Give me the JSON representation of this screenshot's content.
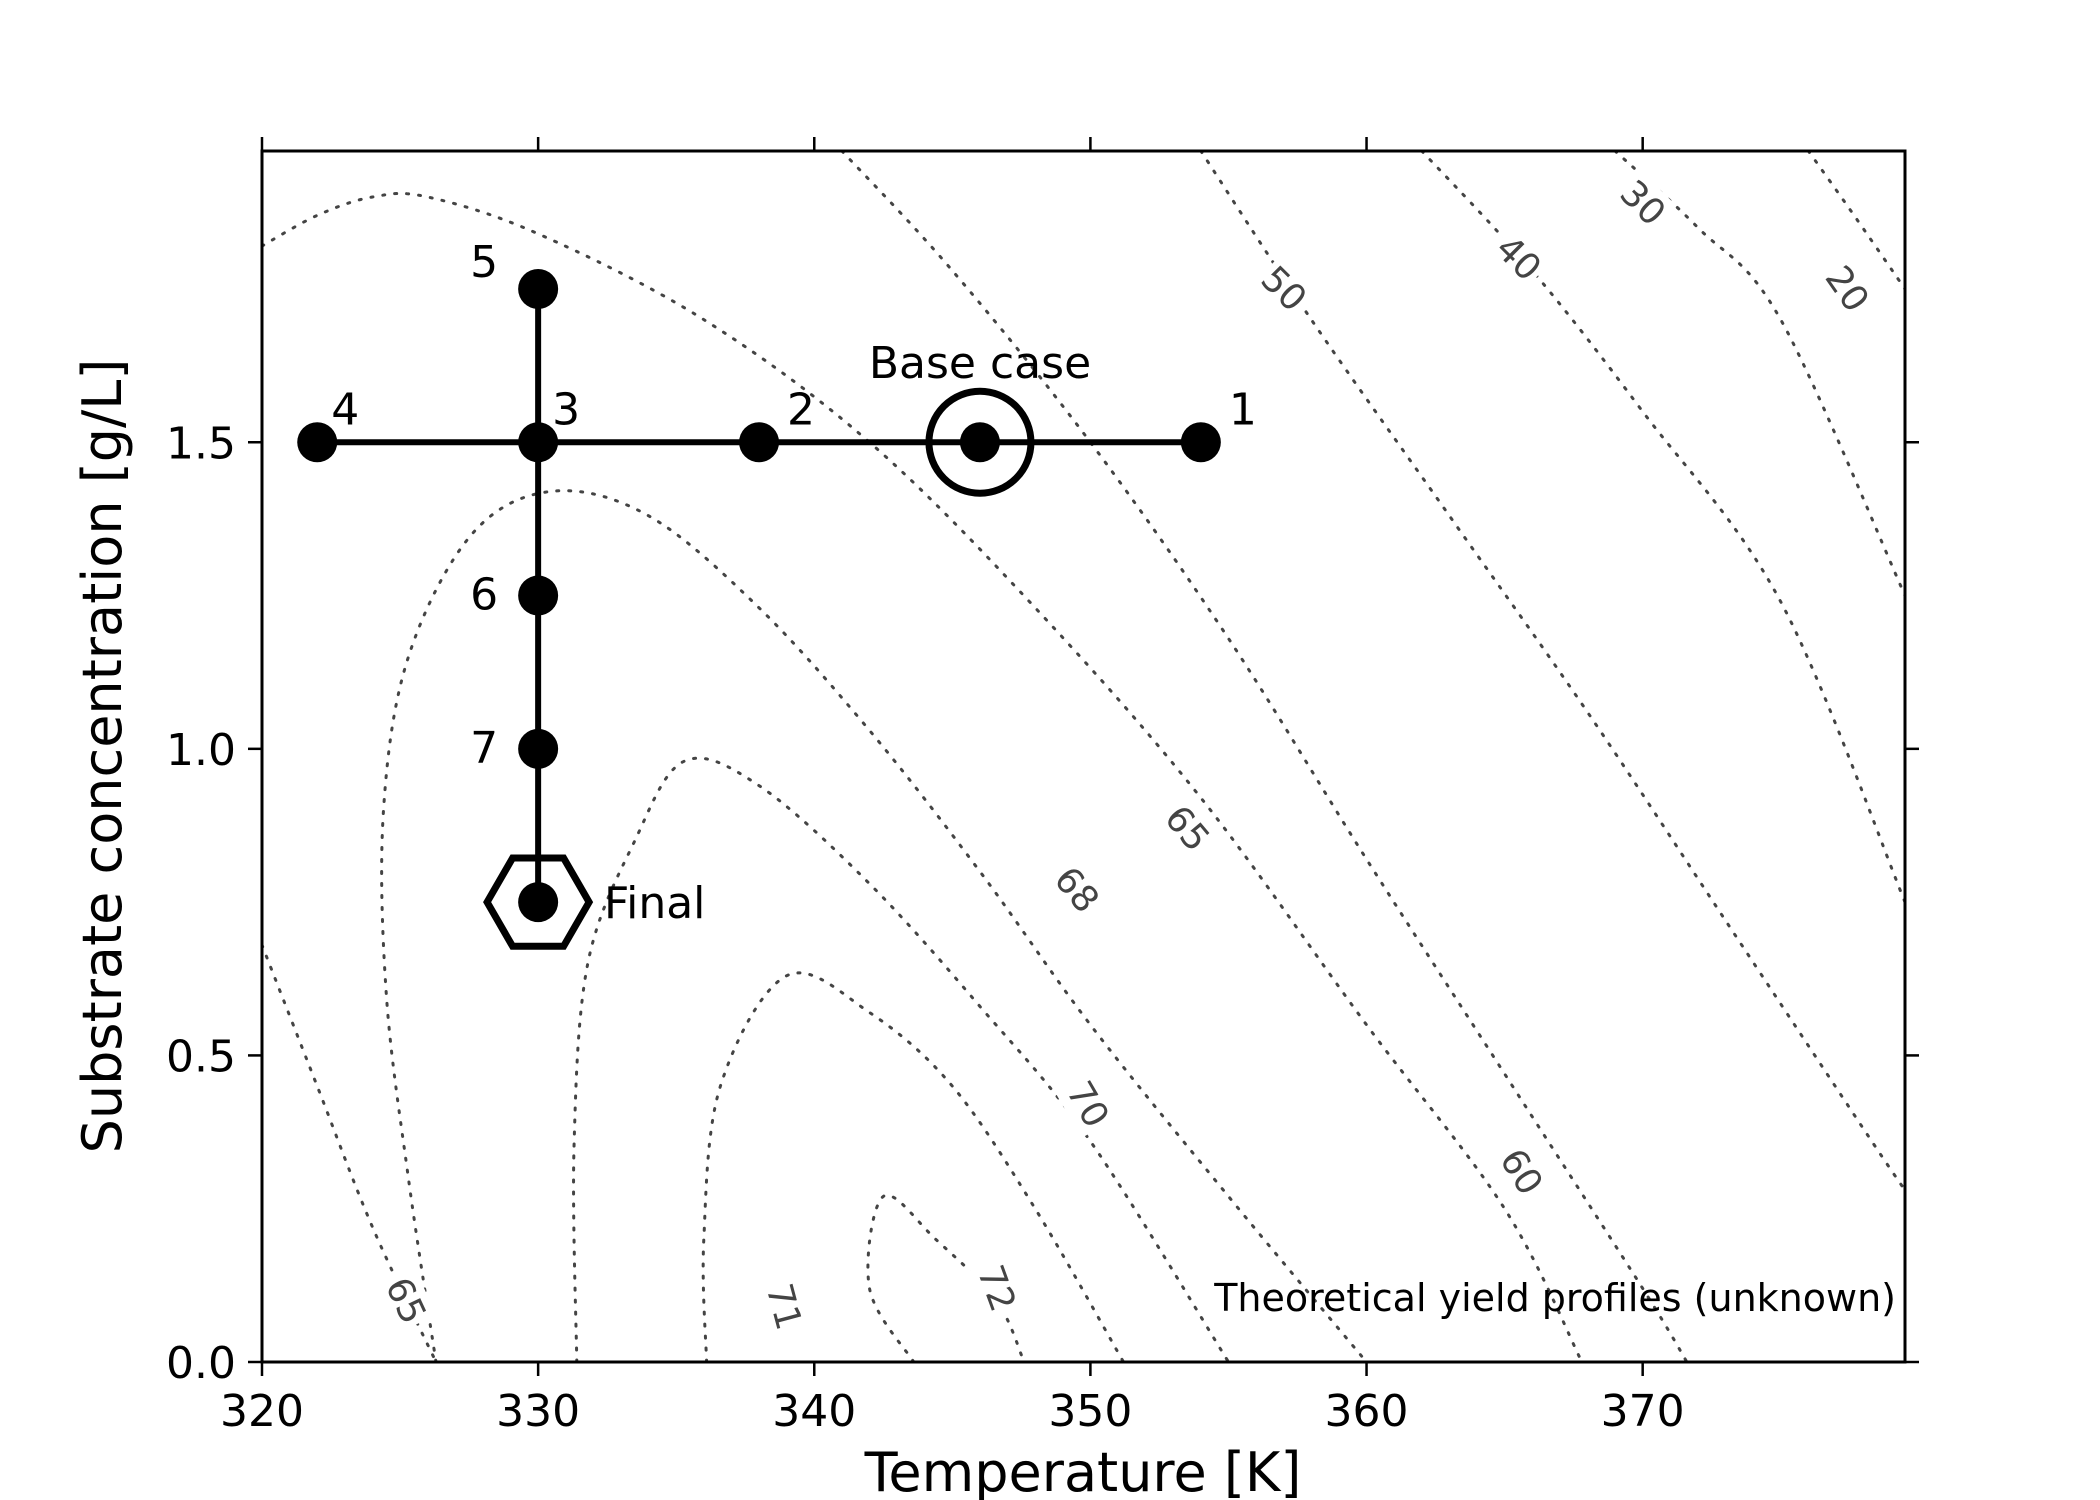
{
  "chart_data": {
    "type": "scatter",
    "title": "",
    "xlabel": "Temperature [K]",
    "ylabel": "Substrate concentration [g/L]",
    "xlim": [
      320,
      379.5
    ],
    "ylim": [
      0,
      1.975
    ],
    "xticks": [
      "320",
      "330",
      "340",
      "350",
      "360",
      "370"
    ],
    "yticks": [
      "0.0",
      "0.5",
      "1.0",
      "1.5"
    ],
    "grid": false,
    "annotation": "Theoretical yield profiles (unknown)",
    "base_case_label": "Base case",
    "final_label": "Final",
    "points": [
      {
        "label": "1",
        "x": 354,
        "y": 1.5
      },
      {
        "label": "2",
        "x": 338,
        "y": 1.5
      },
      {
        "label": "3",
        "x": 330,
        "y": 1.5
      },
      {
        "label": "4",
        "x": 322,
        "y": 1.5
      },
      {
        "label": "5",
        "x": 330,
        "y": 1.75
      },
      {
        "label": "6",
        "x": 330,
        "y": 1.25
      },
      {
        "label": "7",
        "x": 330,
        "y": 1.0
      },
      {
        "label": "",
        "x": 346,
        "y": 1.5
      },
      {
        "label": "",
        "x": 330,
        "y": 0.75
      }
    ],
    "path_segments": [
      {
        "x": [
          322,
          354
        ],
        "y": [
          1.5,
          1.5
        ]
      },
      {
        "x": [
          330,
          330
        ],
        "y": [
          0.75,
          1.75
        ]
      }
    ],
    "base_case_point": {
      "x": 346,
      "y": 1.5
    },
    "final_point": {
      "x": 330,
      "y": 0.75
    },
    "contours": [
      {
        "level": "72",
        "points": [
          [
            343.6,
            0
          ],
          [
            342,
            0.12
          ],
          [
            342.5,
            0.27
          ],
          [
            344.4,
            0.2
          ],
          [
            346.6,
            0.1
          ],
          [
            347.6,
            0
          ]
        ]
      },
      {
        "level": "71",
        "points": [
          [
            336.1,
            0
          ],
          [
            336,
            0.2
          ],
          [
            336.6,
            0.45
          ],
          [
            339,
            0.63
          ],
          [
            342,
            0.57
          ],
          [
            345,
            0.45
          ],
          [
            348,
            0.25
          ],
          [
            351.2,
            0
          ]
        ]
      },
      {
        "level": "70",
        "points": [
          [
            331.4,
            0
          ],
          [
            331.3,
            0.35
          ],
          [
            331.8,
            0.65
          ],
          [
            333.5,
            0.85
          ],
          [
            335.3,
            0.98
          ],
          [
            338,
            0.94
          ],
          [
            342,
            0.78
          ],
          [
            346,
            0.58
          ],
          [
            350,
            0.36
          ],
          [
            355,
            0
          ]
        ]
      },
      {
        "level": "68",
        "points": [
          [
            326.3,
            0
          ],
          [
            325.3,
            0.3
          ],
          [
            324.5,
            0.6
          ],
          [
            324.4,
            0.9
          ],
          [
            325.3,
            1.15
          ],
          [
            327.6,
            1.35
          ],
          [
            330.5,
            1.42
          ],
          [
            334,
            1.38
          ],
          [
            338,
            1.23
          ],
          [
            342,
            1.03
          ],
          [
            346,
            0.8
          ],
          [
            350,
            0.55
          ],
          [
            355,
            0.27
          ],
          [
            360,
            0
          ]
        ]
      },
      {
        "level": "65",
        "points": [
          [
            320,
            0.68
          ],
          [
            322,
            0.45
          ],
          [
            324,
            0.22
          ],
          [
            326.3,
            0
          ]
        ]
      },
      {
        "level": "65b",
        "points": [
          [
            320,
            1.82
          ],
          [
            322,
            1.87
          ],
          [
            324,
            1.9
          ],
          [
            326,
            1.9
          ],
          [
            330,
            1.84
          ],
          [
            336,
            1.7
          ],
          [
            342,
            1.5
          ],
          [
            348,
            1.23
          ],
          [
            354,
            0.92
          ],
          [
            360,
            0.55
          ],
          [
            365,
            0.25
          ],
          [
            367.8,
            0
          ]
        ]
      },
      {
        "level": "60",
        "points": [
          [
            341,
            1.975
          ],
          [
            345,
            1.78
          ],
          [
            350,
            1.5
          ],
          [
            355,
            1.18
          ],
          [
            360,
            0.82
          ],
          [
            365,
            0.47
          ],
          [
            370,
            0.12
          ],
          [
            371.6,
            0
          ]
        ]
      },
      {
        "level": "50",
        "points": [
          [
            354,
            1.975
          ],
          [
            358,
            1.7
          ],
          [
            363,
            1.38
          ],
          [
            368,
            1.06
          ],
          [
            373,
            0.72
          ],
          [
            378,
            0.38
          ],
          [
            379.5,
            0.28
          ]
        ]
      },
      {
        "level": "40",
        "points": [
          [
            362,
            1.975
          ],
          [
            366,
            1.78
          ],
          [
            370,
            1.55
          ],
          [
            375,
            1.24
          ],
          [
            379.5,
            0.75
          ]
        ]
      },
      {
        "level": "30",
        "points": [
          [
            369,
            1.975
          ],
          [
            372,
            1.85
          ],
          [
            375,
            1.7
          ],
          [
            379.5,
            1.25
          ]
        ]
      },
      {
        "level": "20",
        "points": [
          [
            376,
            1.975
          ],
          [
            377.5,
            1.88
          ],
          [
            379.5,
            1.75
          ]
        ]
      }
    ],
    "contour_labels": [
      {
        "text": "72",
        "x": 346.6,
        "y": 0.12,
        "rotation": 70
      },
      {
        "text": "71",
        "x": 338.9,
        "y": 0.09,
        "rotation": 75
      },
      {
        "text": "70",
        "x": 349.9,
        "y": 0.42,
        "rotation": 60
      },
      {
        "text": "68",
        "x": 349.5,
        "y": 0.77,
        "rotation": 50
      },
      {
        "text": "65",
        "x": 325.2,
        "y": 0.1,
        "rotation": 65
      },
      {
        "text": "65",
        "x": 353.5,
        "y": 0.87,
        "rotation": 50
      },
      {
        "text": "60",
        "x": 365.6,
        "y": 0.31,
        "rotation": 58
      },
      {
        "text": "50",
        "x": 357,
        "y": 1.75,
        "rotation": 45
      },
      {
        "text": "40",
        "x": 365.5,
        "y": 1.8,
        "rotation": 45
      },
      {
        "text": "30",
        "x": 370,
        "y": 1.89,
        "rotation": 45
      },
      {
        "text": "20",
        "x": 377.4,
        "y": 1.75,
        "rotation": 55
      }
    ]
  }
}
